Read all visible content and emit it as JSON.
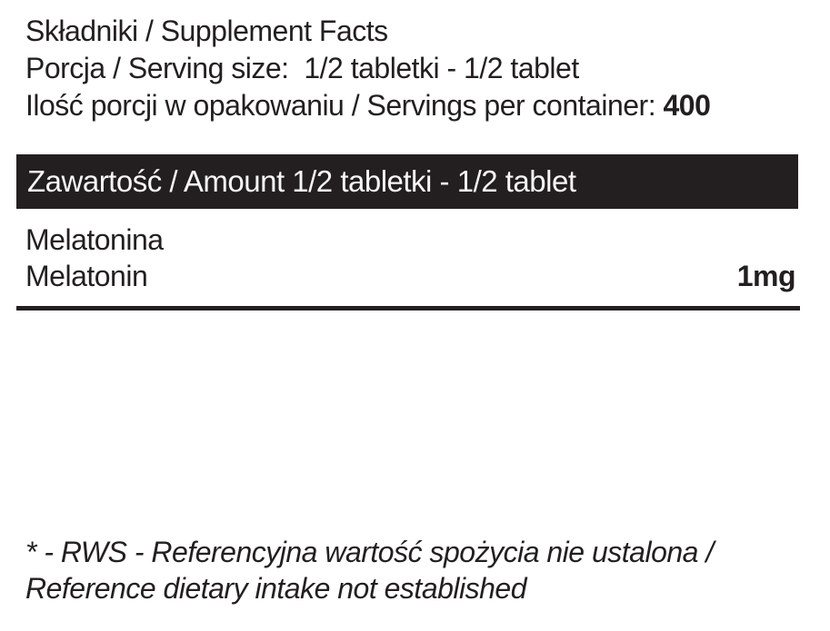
{
  "label": {
    "header": {
      "title": "Składniki / Supplement Facts",
      "serving_size_line": "Porcja / Serving size:  1/2 tabletki - 1/2 tablet",
      "servings_per_container_label": "Ilość porcji w opakowaniu / Servings per container: ",
      "servings_per_container_value": "400"
    },
    "amount_header": "Zawartość / Amount 1/2 tabletki - 1/2 tablet",
    "ingredients": [
      {
        "name_pl": "Melatonina",
        "name_en": "Melatonin",
        "amount": "1mg"
      }
    ],
    "footnote": {
      "line1": "* - RWS - Referencyjna wartość spożycia nie ustalona /",
      "line2": "Reference dietary intake not established"
    },
    "colors": {
      "bar_background": "#231f20",
      "bar_text": "#f7f5f5",
      "body_text": "#231f20",
      "page_background": "#ffffff"
    }
  }
}
